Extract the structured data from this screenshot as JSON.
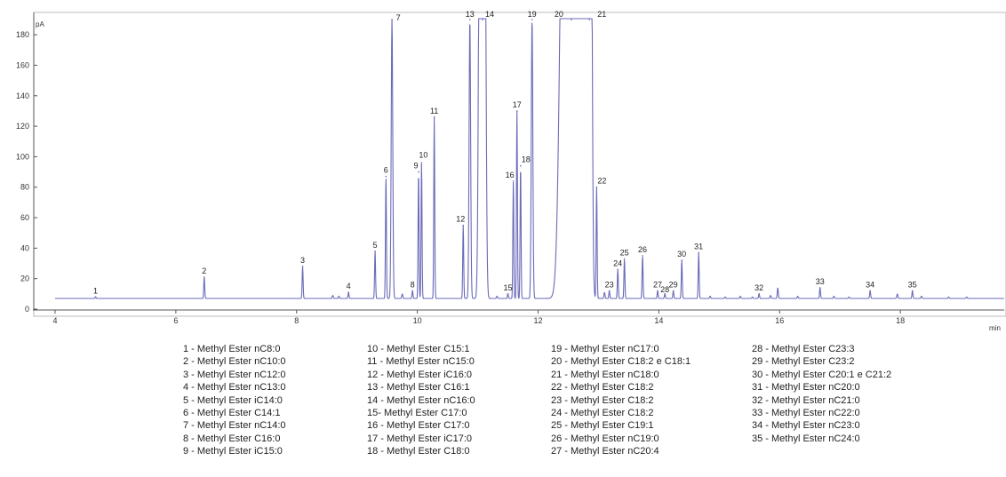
{
  "chart_data": {
    "type": "line",
    "ylabel": "pA",
    "xlabel": "min",
    "xlim": [
      4,
      19.5
    ],
    "ylim": [
      0,
      190
    ],
    "x_ticks": [
      4,
      6,
      8,
      10,
      12,
      14,
      16,
      18
    ],
    "y_ticks": [
      0,
      20,
      40,
      60,
      80,
      100,
      120,
      140,
      160,
      180
    ],
    "line_color": "#6a6ab8",
    "baseline": 7,
    "series": [
      {
        "peaks": [
          {
            "label": "1",
            "x": 4.67,
            "y": 8
          },
          {
            "label": "2",
            "x": 6.47,
            "y": 21
          },
          {
            "label": "3",
            "x": 8.1,
            "y": 28
          },
          {
            "label": "4",
            "x": 8.86,
            "y": 11
          },
          {
            "label": "5",
            "x": 9.3,
            "y": 38
          },
          {
            "label": "6",
            "x": 9.48,
            "y": 87
          },
          {
            "label": "7",
            "x": 9.58,
            "y": 190
          },
          {
            "label": "8",
            "x": 9.92,
            "y": 12
          },
          {
            "label": "9",
            "x": 10.02,
            "y": 90
          },
          {
            "label": "10",
            "x": 10.07,
            "y": 96
          },
          {
            "label": "11",
            "x": 10.28,
            "y": 126
          },
          {
            "label": "12",
            "x": 10.76,
            "y": 55
          },
          {
            "label": "13",
            "x": 10.87,
            "y": 190
          },
          {
            "label": "14",
            "x": 11.08,
            "y": 190
          },
          {
            "label": "15",
            "x": 11.5,
            "y": 10
          },
          {
            "label": "16",
            "x": 11.59,
            "y": 84
          },
          {
            "label": "17",
            "x": 11.65,
            "y": 130
          },
          {
            "label": "18",
            "x": 11.71,
            "y": 94
          },
          {
            "label": "19",
            "x": 11.9,
            "y": 190
          },
          {
            "label": "20",
            "x": 12.55,
            "y": 190
          },
          {
            "label": "21",
            "x": 12.85,
            "y": 190
          },
          {
            "label": "22",
            "x": 12.97,
            "y": 80
          },
          {
            "label": "23",
            "x": 13.18,
            "y": 12
          },
          {
            "label": "24",
            "x": 13.32,
            "y": 26
          },
          {
            "label": "25",
            "x": 13.43,
            "y": 33
          },
          {
            "label": "26",
            "x": 13.73,
            "y": 35
          },
          {
            "label": "27",
            "x": 13.98,
            "y": 12
          },
          {
            "label": "28",
            "x": 14.1,
            "y": 10
          },
          {
            "label": "29",
            "x": 14.24,
            "y": 12
          },
          {
            "label": "30",
            "x": 14.38,
            "y": 32
          },
          {
            "label": "31",
            "x": 14.66,
            "y": 37
          },
          {
            "label": "32",
            "x": 15.66,
            "y": 10
          },
          {
            "label": "33",
            "x": 16.67,
            "y": 14
          },
          {
            "label": "34",
            "x": 17.5,
            "y": 12
          },
          {
            "label": "35",
            "x": 18.2,
            "y": 12
          }
        ]
      }
    ]
  },
  "legend": {
    "columns": [
      [
        "1 - Methyl Ester nC8:0",
        "2 - Methyl Ester nC10:0",
        "3 - Methyl Ester nC12:0",
        "4 - Methyl Ester nC13:0",
        "5 - Methyl Ester iC14:0",
        "6 - Methyl Ester C14:1",
        "7 - Methyl Ester nC14:0",
        "8 - Methyl Ester C16:0",
        "9 - Methyl Ester iC15:0"
      ],
      [
        "10 - Methyl Ester C15:1",
        "11 - Methyl Ester nC15:0",
        "12 - Methyl Ester iC16:0",
        "13 - Methyl Ester C16:1",
        "14 - Methyl Ester nC16:0",
        "15- Methyl Ester C17:0",
        "16 - Methyl Ester C17:0",
        "17 - Methyl Ester iC17:0",
        "18 - Methyl Ester C18:0"
      ],
      [
        "19 - Methyl Ester nC17:0",
        "20 - Methyl Ester C18:2 e C18:1",
        "21 - Methyl Ester nC18:0",
        "22 - Methyl Ester C18:2",
        "23 - Methyl Ester C18:2",
        "24 - Methyl Ester C18:2",
        "25 - Methyl Ester C19:1",
        "26 - Methyl Ester nC19:0",
        "27 - Methyl Ester nC20:4"
      ],
      [
        "28 - Methyl Ester C23:3",
        "29 - Methyl Ester C23:2",
        "30 - Methyl Ester C20:1 e C21:2",
        "31 - Methyl Ester nC20:0",
        "32 - Methyl Ester nC21:0",
        "33 - Methyl Ester nC22:0",
        "34 - Methyl Ester nC23:0",
        "35 - Methyl Ester nC24:0"
      ]
    ]
  }
}
